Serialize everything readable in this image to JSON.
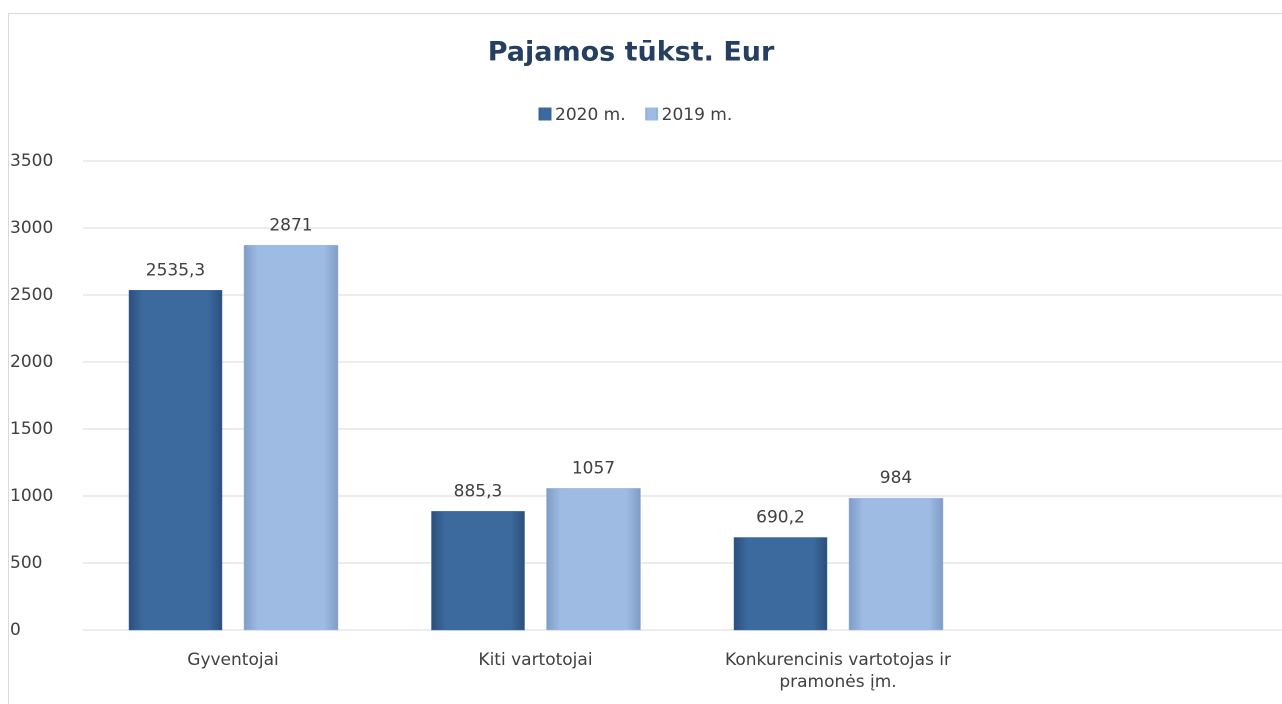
{
  "chart_data": {
    "type": "bar",
    "title": "Pajamos tūkst. Eur",
    "categories": [
      "Gyventojai",
      "Kiti vartotojai",
      "Konkurencinis vartotojas ir pramonės įm.",
      null
    ],
    "series": [
      {
        "name": "2020 m.",
        "color": "#3d6a9e",
        "values": [
          2535.3,
          885.3,
          690.2,
          null
        ],
        "value_labels": [
          "2535,3",
          "885,3",
          "690,2",
          null
        ]
      },
      {
        "name": "2019 m.",
        "color": "#9dbbe3",
        "values": [
          2871,
          1057,
          984,
          null
        ],
        "value_labels": [
          "2871",
          "1057",
          "984",
          null
        ]
      }
    ],
    "ylim": [
      0,
      3500
    ],
    "yticks": [
      0,
      500,
      1000,
      1500,
      2000,
      2500,
      3000,
      3500
    ],
    "grid": true,
    "legend": "top"
  }
}
